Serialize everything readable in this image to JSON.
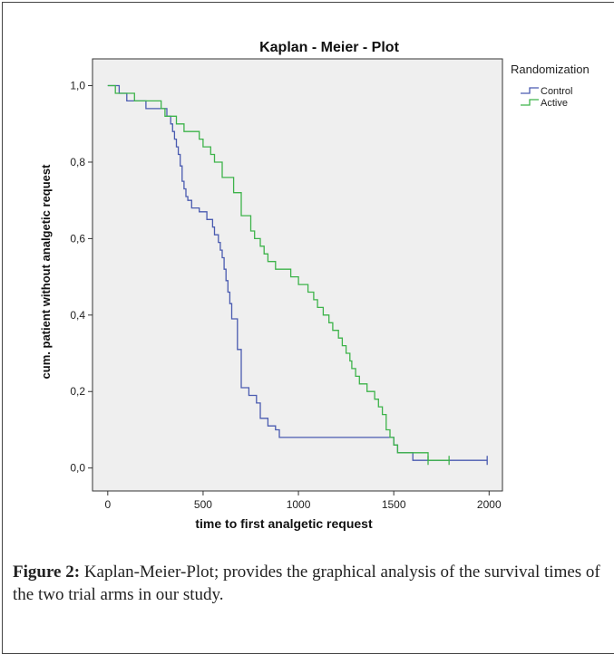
{
  "chart_data": {
    "type": "line",
    "subtype": "kaplan-meier step",
    "title": "Kaplan - Meier - Plot",
    "xlabel": "time to first analgetic request",
    "ylabel": "cum. patient without analgetic request",
    "xlim": [
      -80,
      2070
    ],
    "ylim": [
      -0.06,
      1.07
    ],
    "xticks": [
      0,
      500,
      1000,
      1500,
      2000
    ],
    "xtick_labels": [
      "0",
      "500",
      "1000",
      "1500",
      "2000"
    ],
    "yticks": [
      0.0,
      0.2,
      0.4,
      0.6,
      0.8,
      1.0
    ],
    "ytick_labels": [
      "0,0",
      "0,2",
      "0,4",
      "0,6",
      "0,8",
      "1,0"
    ],
    "grid": false,
    "legend": {
      "title": "Randomization",
      "position": "top-right"
    },
    "background": "#efefef",
    "series": [
      {
        "name": "Control",
        "color": "#4a5bb0",
        "x": [
          0,
          60,
          80,
          100,
          200,
          310,
          330,
          340,
          350,
          360,
          370,
          380,
          390,
          400,
          410,
          420,
          440,
          480,
          520,
          550,
          560,
          580,
          590,
          600,
          610,
          620,
          630,
          640,
          650,
          660,
          680,
          700,
          720,
          740,
          780,
          800,
          840,
          880,
          900,
          1500,
          1520,
          1560,
          1600,
          1990
        ],
        "y": [
          1.0,
          0.98,
          0.98,
          0.96,
          0.94,
          0.92,
          0.9,
          0.88,
          0.86,
          0.84,
          0.82,
          0.79,
          0.75,
          0.73,
          0.71,
          0.7,
          0.68,
          0.67,
          0.65,
          0.63,
          0.61,
          0.59,
          0.57,
          0.55,
          0.52,
          0.49,
          0.46,
          0.43,
          0.39,
          0.39,
          0.31,
          0.21,
          0.21,
          0.19,
          0.17,
          0.13,
          0.11,
          0.1,
          0.08,
          0.06,
          0.04,
          0.04,
          0.02,
          0.02
        ],
        "censored_x": [
          1990
        ],
        "censored_y": [
          0.02
        ]
      },
      {
        "name": "Active",
        "color": "#3db34a",
        "x": [
          0,
          40,
          140,
          280,
          300,
          360,
          400,
          480,
          500,
          540,
          560,
          600,
          660,
          700,
          750,
          770,
          800,
          820,
          840,
          880,
          960,
          1000,
          1050,
          1080,
          1100,
          1130,
          1160,
          1180,
          1210,
          1230,
          1250,
          1270,
          1280,
          1300,
          1320,
          1360,
          1400,
          1420,
          1440,
          1460,
          1480,
          1500,
          1520,
          1600,
          1680,
          1790
        ],
        "y": [
          1.0,
          0.98,
          0.96,
          0.94,
          0.92,
          0.9,
          0.88,
          0.86,
          0.84,
          0.82,
          0.8,
          0.76,
          0.72,
          0.66,
          0.62,
          0.6,
          0.58,
          0.56,
          0.54,
          0.52,
          0.5,
          0.48,
          0.46,
          0.44,
          0.42,
          0.4,
          0.38,
          0.36,
          0.34,
          0.32,
          0.3,
          0.28,
          0.26,
          0.24,
          0.22,
          0.2,
          0.18,
          0.16,
          0.14,
          0.1,
          0.08,
          0.06,
          0.04,
          0.04,
          0.02,
          0.02
        ],
        "censored_x": [
          1680,
          1790
        ],
        "censored_y": [
          0.02,
          0.02
        ]
      }
    ]
  },
  "caption": {
    "label": "Figure 2:",
    "text": " Kaplan-Meier-Plot; provides the graphical analysis of the survival times of the two trial arms in our study."
  }
}
